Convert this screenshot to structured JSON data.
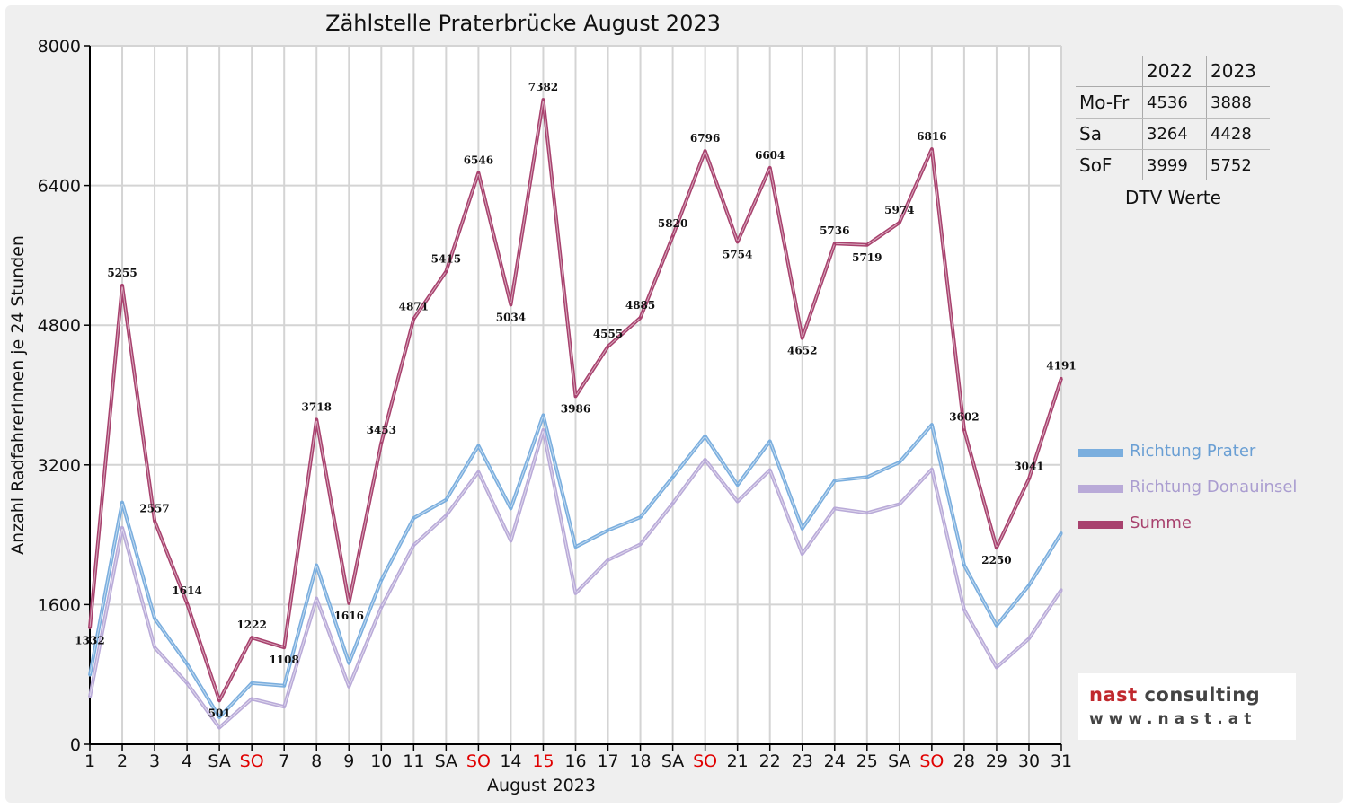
{
  "chart_data": {
    "type": "line",
    "title": "Zählstelle Praterbrücke August 2023",
    "xlabel": "August 2023",
    "ylabel": "Anzahl RadfahrerInnen je 24 Stunden",
    "ylim": [
      0,
      8000
    ],
    "yticks": [
      0,
      1600,
      3200,
      4800,
      6400,
      8000
    ],
    "grid": true,
    "legend_position": "right",
    "x": [
      "1",
      "2",
      "3",
      "4",
      "SA",
      "SO",
      "7",
      "8",
      "9",
      "10",
      "11",
      "SA",
      "SO",
      "14",
      "15",
      "16",
      "17",
      "18",
      "SA",
      "SO",
      "21",
      "22",
      "23",
      "24",
      "25",
      "SA",
      "SO",
      "28",
      "29",
      "30",
      "31"
    ],
    "x_highlight": [
      5,
      12,
      14,
      19,
      26
    ],
    "series": [
      {
        "name": "Richtung Prater",
        "color": "#7aaede",
        "values": [
          790,
          2770,
          1440,
          920,
          310,
          700,
          670,
          2050,
          930,
          1880,
          2590,
          2800,
          3420,
          2700,
          3770,
          2260,
          2450,
          2600,
          3060,
          3530,
          2970,
          3470,
          2470,
          3020,
          3060,
          3230,
          3660,
          2050,
          1360,
          1820,
          2420
        ]
      },
      {
        "name": "Richtung Donauinsel",
        "color": "#b9aad8",
        "values": [
          540,
          2480,
          1110,
          700,
          190,
          520,
          430,
          1670,
          660,
          1570,
          2280,
          2620,
          3120,
          2330,
          3600,
          1730,
          2110,
          2290,
          2760,
          3260,
          2780,
          3140,
          2180,
          2700,
          2650,
          2750,
          3150,
          1540,
          880,
          1210,
          1770
        ]
      },
      {
        "name": "Summe",
        "color": "#a8426e",
        "values": [
          1332,
          5255,
          2557,
          1614,
          501,
          1222,
          1108,
          3718,
          1616,
          3453,
          4871,
          5415,
          6546,
          5034,
          7382,
          3986,
          4555,
          4885,
          5820,
          6796,
          5754,
          6604,
          4652,
          5736,
          5719,
          5974,
          6816,
          3602,
          2250,
          3041,
          4191
        ]
      }
    ],
    "data_labels": [
      "1332",
      "5255",
      "2557",
      "1614",
      "501",
      "1222",
      "1108",
      "3718",
      "1616",
      "3453",
      "4871",
      "5415",
      "6546",
      "5034",
      "7382",
      "3986",
      "4555",
      "4885",
      "5820",
      "6796",
      "5754",
      "6604",
      "4652",
      "5736",
      "5719",
      "5974",
      "6816",
      "3602",
      "2250",
      "3041",
      "4191"
    ]
  },
  "colors": {
    "highlight": "#e00000",
    "grid": "#d4d4d4",
    "axis": "#000000"
  },
  "dtv_table": {
    "headers": [
      "",
      "2022",
      "2023"
    ],
    "rows": [
      {
        "label": "Mo-Fr",
        "v2022": "4536",
        "v2023": "3888"
      },
      {
        "label": "Sa",
        "v2022": "3264",
        "v2023": "4428"
      },
      {
        "label": "SoF",
        "v2022": "3999",
        "v2023": "5752"
      }
    ],
    "caption": "DTV Werte"
  },
  "logo": {
    "word1": "nast",
    "word2": "consulting",
    "url": "www.nast.at"
  }
}
